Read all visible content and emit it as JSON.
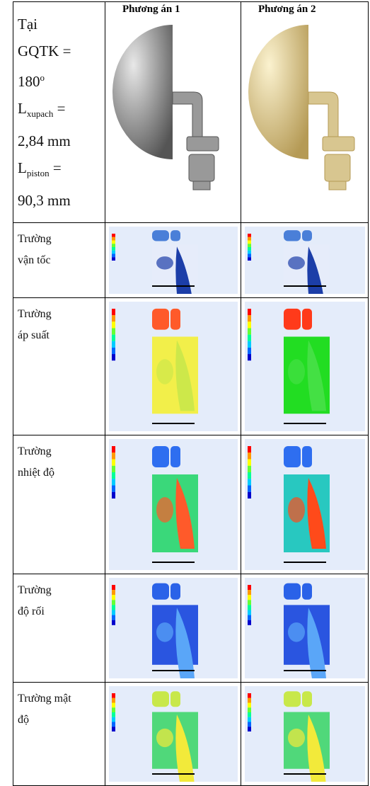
{
  "header": {
    "col1": "Phương án 1",
    "col2": "Phương án 2"
  },
  "condition": {
    "line1": "Tại",
    "line2": "GQTK  =",
    "angle": "180",
    "angle_sup": "o",
    "lx_base": "L",
    "lx_sub": "xupach",
    "lx_eq": " =",
    "lx_value": "2,84 mm",
    "lp_base": "L",
    "lp_sub": "piston",
    "lp_eq": " =",
    "lp_value": "90,3 mm"
  },
  "rows": [
    {
      "line1": "Trường",
      "line2": "vận tốc"
    },
    {
      "line1": "Trường",
      "line2": "áp suất"
    },
    {
      "line1": "Trường",
      "line2": "nhiệt độ"
    },
    {
      "line1": "Trường",
      "line2": "độ rối"
    },
    {
      "line1": "Trường mật",
      "line2": "độ"
    }
  ]
}
